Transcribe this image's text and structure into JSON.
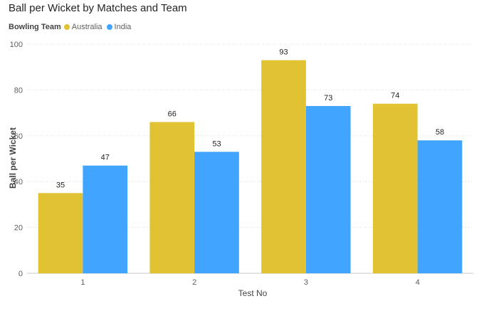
{
  "chart_data": {
    "type": "bar",
    "title": "Ball per Wicket by Matches and Team",
    "legend_title": "Bowling Team",
    "legend_position": "top-left",
    "xlabel": "Test No",
    "ylabel": "Ball per Wicket",
    "categories": [
      "1",
      "2",
      "3",
      "4"
    ],
    "series": [
      {
        "name": "Australia",
        "color": "#E0C232",
        "values": [
          35,
          66,
          93,
          74
        ]
      },
      {
        "name": "India",
        "color": "#41A4FF",
        "values": [
          47,
          53,
          73,
          58
        ]
      }
    ],
    "ylim": [
      0,
      100
    ],
    "yticks": [
      0,
      20,
      40,
      60,
      80,
      100
    ],
    "grid": true,
    "data_labels": true
  }
}
